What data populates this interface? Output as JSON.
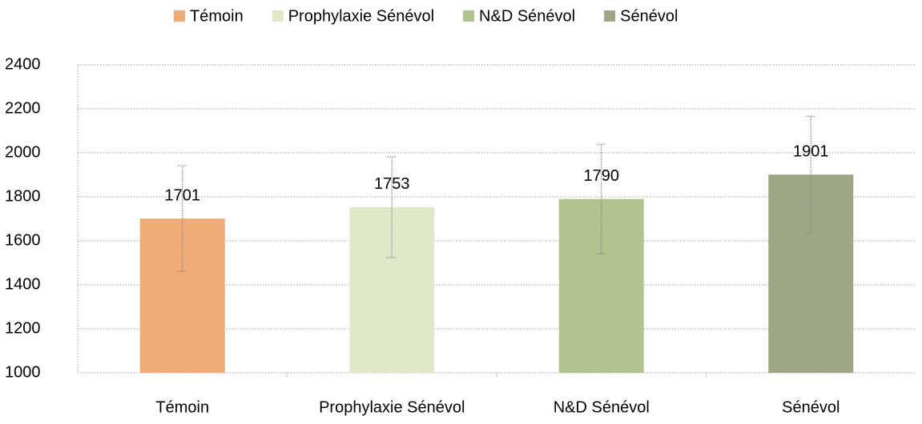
{
  "chart_data": {
    "type": "bar",
    "categories": [
      "Témoin",
      "Prophylaxie Sénévol",
      "N&D Sénévol",
      "Sénévol"
    ],
    "series": [
      {
        "name": "Témoin",
        "color": "#f0ab76",
        "values": [
          1701,
          null,
          null,
          null
        ],
        "errors": [
          240,
          null,
          null,
          null
        ]
      },
      {
        "name": "Prophylaxie Sénévol",
        "color": "#dfe8c9",
        "values": [
          null,
          1753,
          null,
          null
        ],
        "errors": [
          null,
          229,
          null,
          null
        ]
      },
      {
        "name": "N&D Sénévol",
        "color": "#b1c38f",
        "values": [
          null,
          null,
          1790,
          null
        ],
        "errors": [
          null,
          null,
          249,
          null
        ]
      },
      {
        "name": "Sénévol",
        "color": "#9da785",
        "values": [
          null,
          null,
          null,
          1901
        ],
        "errors": [
          null,
          null,
          null,
          265
        ]
      }
    ],
    "ylim": [
      1000,
      2400
    ],
    "yticks": [
      1000,
      1200,
      1400,
      1600,
      1800,
      2000,
      2200,
      2400
    ],
    "grid": true
  }
}
